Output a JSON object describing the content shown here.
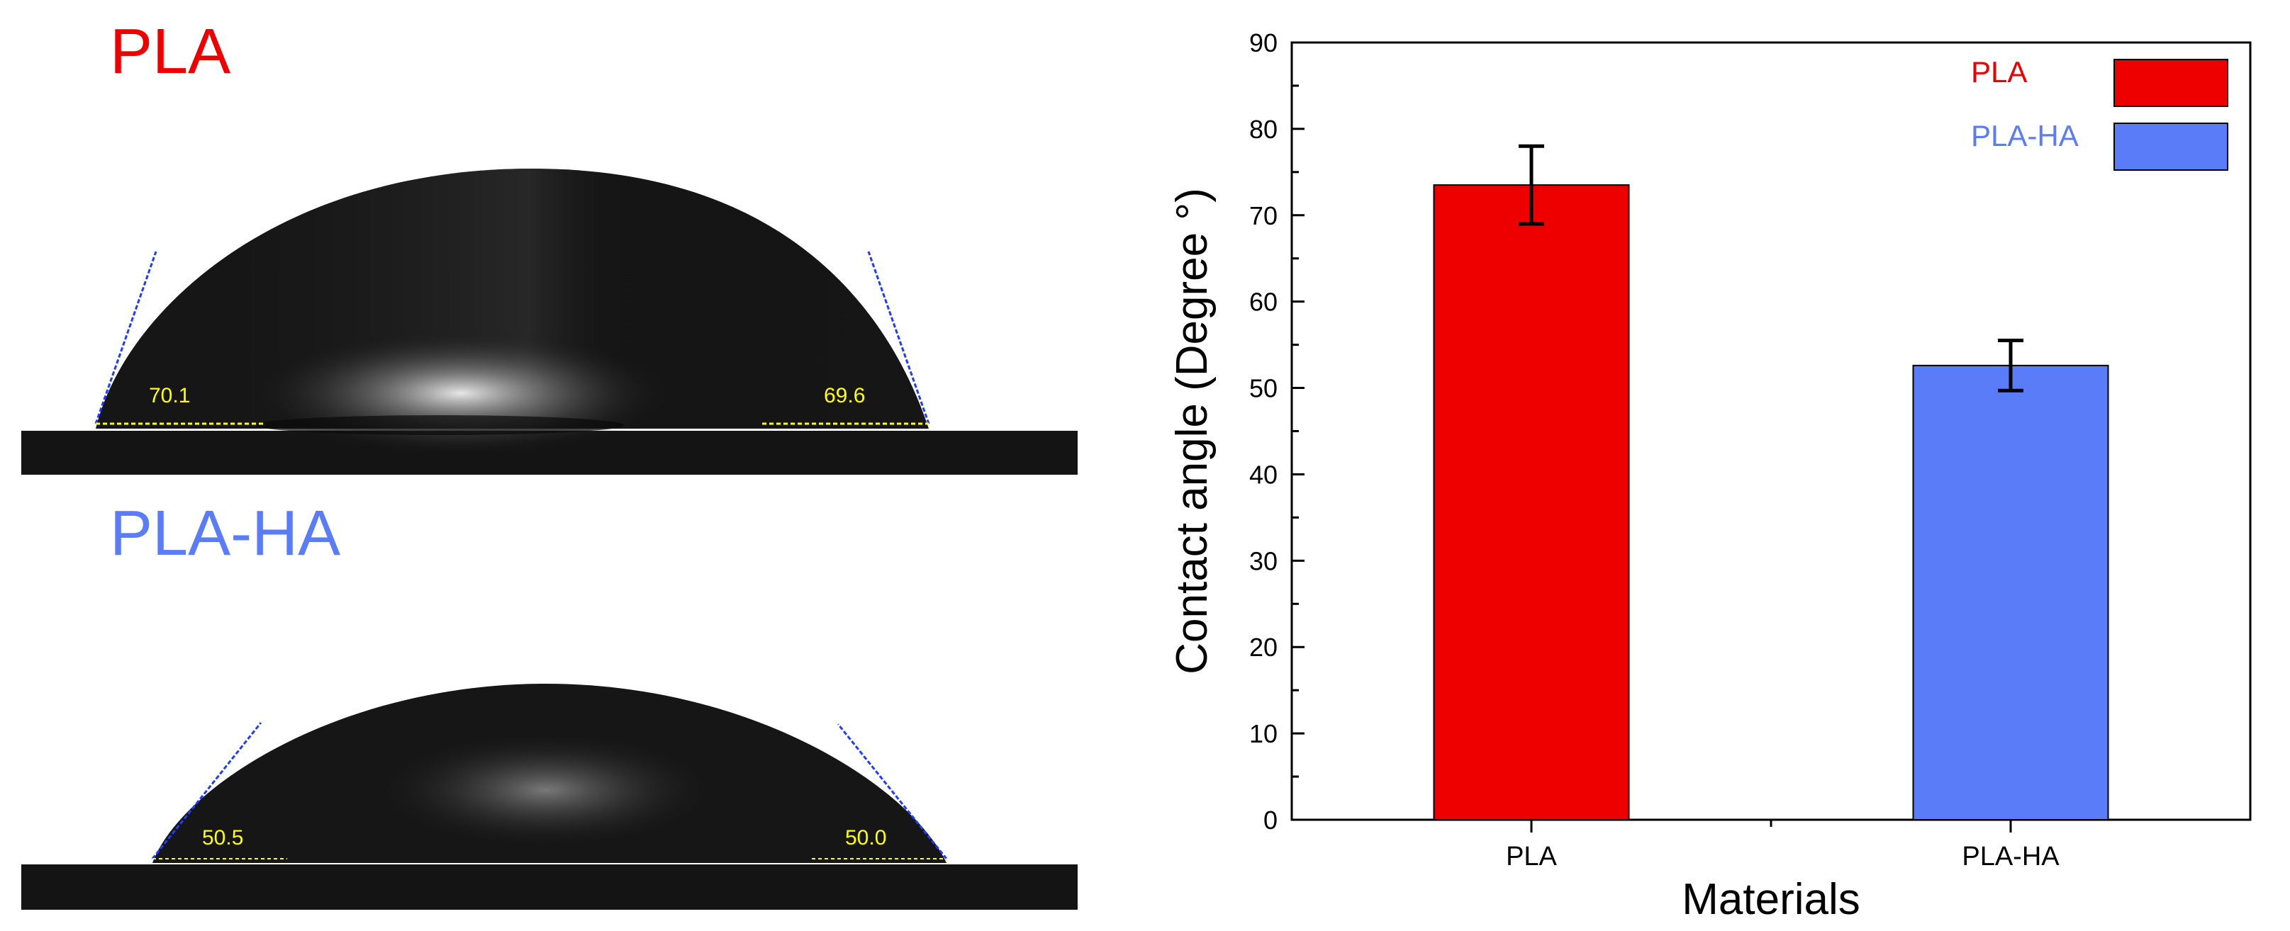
{
  "figure": {
    "colors": {
      "pla": "#ee0000",
      "pla_ha": "#5b7cf8",
      "angle_label": "#ffff00",
      "tangent": "#1f3cff"
    },
    "drops": [
      {
        "label": "PLA",
        "left_angle": "70.1",
        "right_angle": "69.6"
      },
      {
        "label": "PLA-HA",
        "left_angle": "50.5",
        "right_angle": "50.0"
      }
    ]
  },
  "chart_data": {
    "type": "bar",
    "categories": [
      "PLA",
      "PLA-HA"
    ],
    "values": [
      73.5,
      52.6
    ],
    "errors": [
      4.5,
      2.9
    ],
    "colors": [
      "#ee0000",
      "#5b7cf8"
    ],
    "xlabel": "Materials",
    "ylabel": "Contact angle (Degree °)",
    "ylim": [
      0,
      90
    ],
    "yticks": [
      "0",
      "10",
      "20",
      "30",
      "40",
      "50",
      "60",
      "70",
      "80",
      "90"
    ],
    "legend": {
      "placement": "top-right",
      "entries": [
        {
          "name": "PLA",
          "color": "#ee0000"
        },
        {
          "name": "PLA-HA",
          "color": "#5b7cf8"
        }
      ]
    },
    "grid": false
  }
}
